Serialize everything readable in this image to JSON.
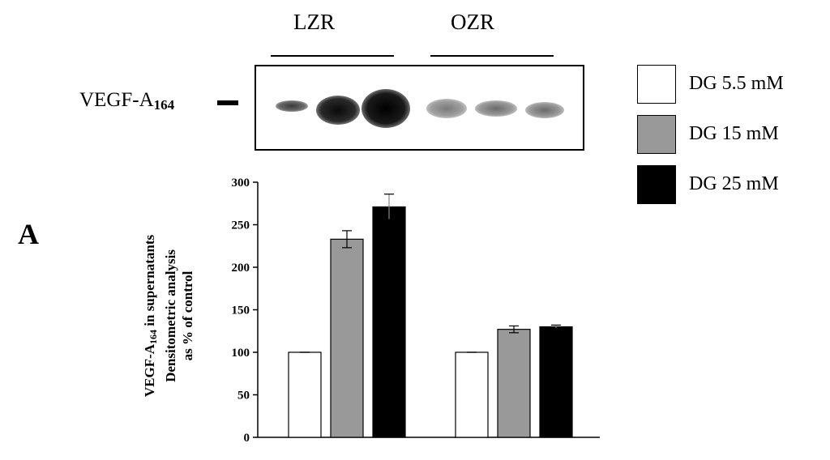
{
  "panel_label": "A",
  "groups": [
    "LZR",
    "OZR"
  ],
  "blot": {
    "label_main": "VEGF-A",
    "label_sub": "164"
  },
  "legend": [
    {
      "label": "DG 5.5 mM",
      "color": "#ffffff"
    },
    {
      "label": "DG 15 mM",
      "color": "#999999"
    },
    {
      "label": "DG 25 mM",
      "color": "#000000"
    }
  ],
  "chart_data": {
    "type": "bar",
    "categories": [
      "LZR",
      "OZR"
    ],
    "series": [
      {
        "name": "DG 5.5 mM",
        "values": [
          100,
          100
        ],
        "errors": [
          0,
          0
        ],
        "color": "#ffffff"
      },
      {
        "name": "DG 15 mM",
        "values": [
          233,
          127
        ],
        "errors": [
          10,
          4
        ],
        "color": "#999999"
      },
      {
        "name": "DG 25 mM",
        "values": [
          271,
          130
        ],
        "errors": [
          15,
          2
        ],
        "color": "#000000"
      }
    ],
    "ylabel_line1_main": "VEGF-A",
    "ylabel_line1_sub": "164",
    "ylabel_line1_rest": " in supernatants",
    "ylabel_line2": "Densitometric analysis",
    "ylabel_line3": "as % of control",
    "ylim": [
      0,
      300
    ],
    "yticks": [
      0,
      50,
      100,
      150,
      200,
      250,
      300
    ],
    "grid": false
  }
}
